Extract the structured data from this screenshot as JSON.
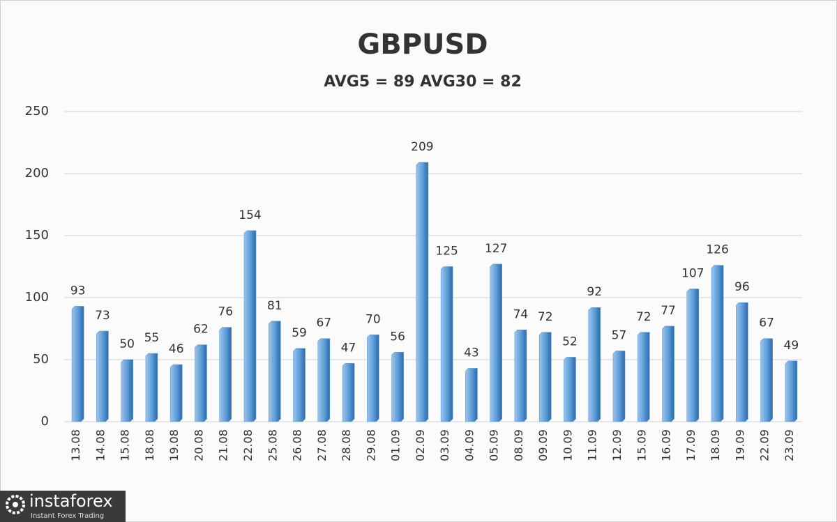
{
  "chart_data": {
    "type": "bar",
    "title": "GBPUSD",
    "subtitle": "AVG5 = 89 AVG30 = 82",
    "categories": [
      "13.08",
      "14.08",
      "15.08",
      "18.08",
      "19.08",
      "20.08",
      "21.08",
      "22.08",
      "25.08",
      "26.08",
      "27.08",
      "28.08",
      "29.08",
      "01.09",
      "02.09",
      "03.09",
      "04.09",
      "05.09",
      "08.09",
      "09.09",
      "10.09",
      "11.09",
      "12.09",
      "15.09",
      "16.09",
      "17.09",
      "18.09",
      "19.09",
      "22.09",
      "23.09"
    ],
    "values": [
      93,
      73,
      50,
      55,
      46,
      62,
      76,
      154,
      81,
      59,
      67,
      47,
      70,
      56,
      209,
      125,
      43,
      127,
      74,
      72,
      52,
      92,
      57,
      72,
      77,
      107,
      126,
      96,
      67,
      49
    ],
    "color": "#5b9bd5",
    "ylim": [
      0,
      250
    ],
    "yticks": [
      0,
      50,
      100,
      150,
      200,
      250
    ],
    "grid": true
  },
  "logo": {
    "name": "instaforex",
    "tagline": "Instant Forex Trading"
  }
}
